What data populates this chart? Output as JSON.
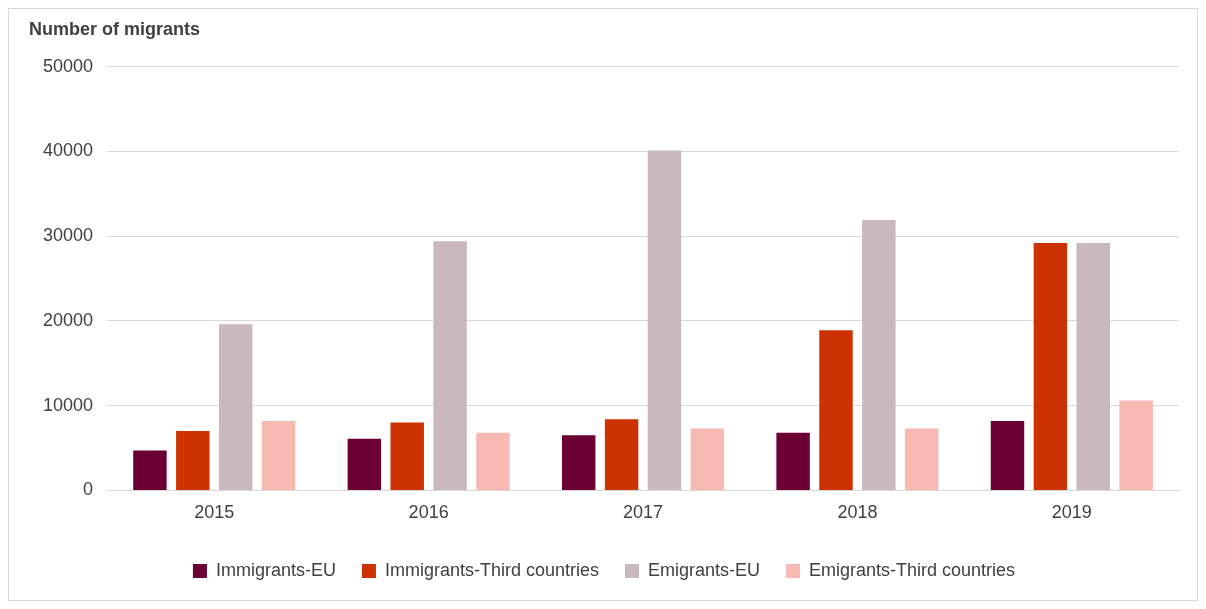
{
  "chart_data": {
    "type": "bar",
    "title": "Number of migrants",
    "categories": [
      "2015",
      "2016",
      "2017",
      "2018",
      "2019"
    ],
    "series": [
      {
        "name": "Immigrants-EU",
        "color": "#6b0033",
        "values": [
          4700,
          6100,
          6500,
          6800,
          8200
        ]
      },
      {
        "name": "Immigrants-Third countries",
        "color": "#cc3300",
        "values": [
          7000,
          8000,
          8400,
          18900,
          29200
        ]
      },
      {
        "name": "Emigrants-EU",
        "color": "#c9b8be",
        "values": [
          19600,
          29400,
          40100,
          31900,
          29200
        ]
      },
      {
        "name": "Emigrants-Third countries",
        "color": "#f7b9b2",
        "values": [
          8200,
          6800,
          7300,
          7300,
          10600
        ]
      }
    ],
    "ylim": [
      0,
      50000
    ],
    "yticks": [
      0,
      10000,
      20000,
      30000,
      40000,
      50000
    ],
    "grid": "y",
    "legend": "bottom"
  }
}
